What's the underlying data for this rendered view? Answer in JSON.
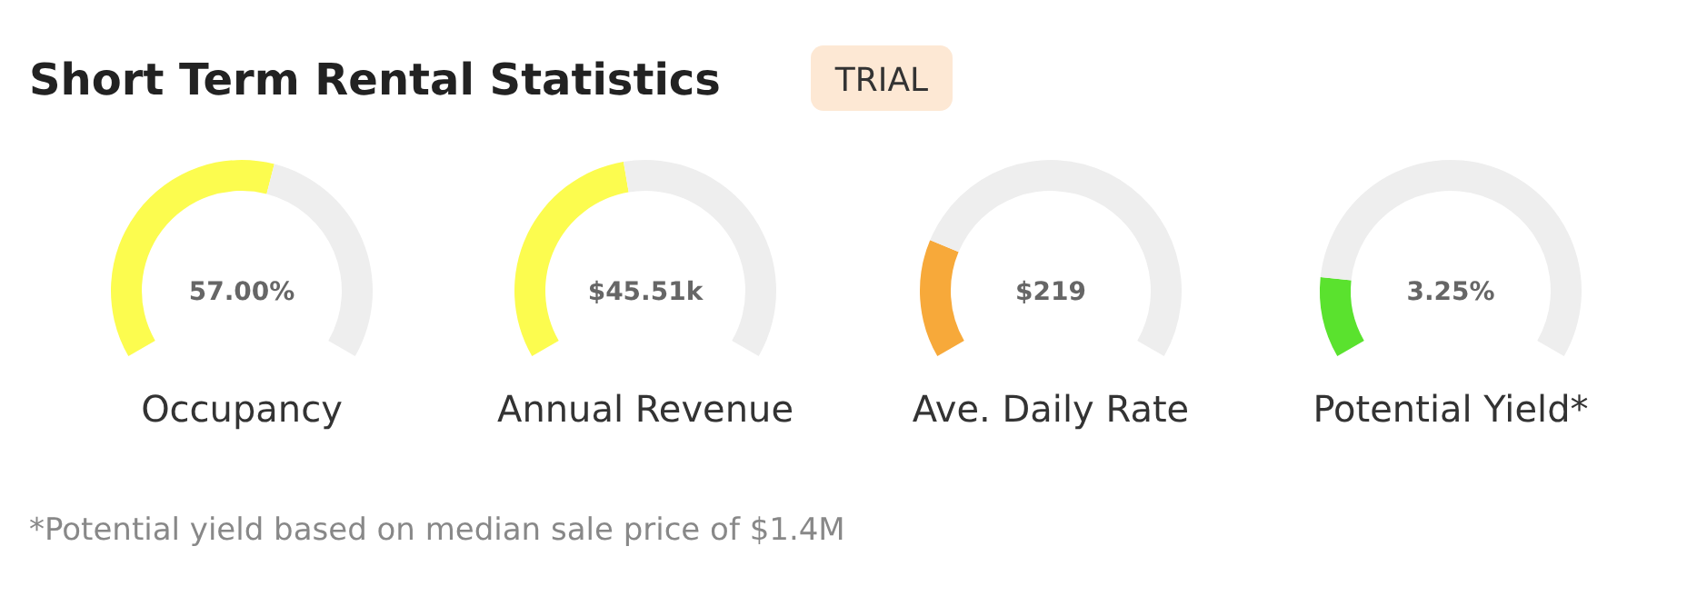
{
  "chart_data": [
    {
      "type": "other",
      "title": "Short Term Rental Statistics",
      "annotations": [
        "TRIAL",
        "*Potential yield based on median sale price of $1.4M"
      ]
    },
    {
      "type": "donut",
      "title": "Occupancy",
      "categories": [
        null,
        null
      ],
      "values": [
        56,
        44
      ],
      "colors": [
        "#fcfc4f",
        "#eeeeee"
      ],
      "annotations": [
        "57.00%"
      ]
    },
    {
      "type": "donut",
      "title": "Annual Revenue",
      "categories": [
        null,
        null
      ],
      "values": [
        46,
        54
      ],
      "colors": [
        "#fcfc4f",
        "#eeeeee"
      ],
      "annotations": [
        "$45.51k"
      ]
    },
    {
      "type": "donut",
      "title": "Ave. Daily Rate",
      "categories": [
        null,
        null
      ],
      "values": [
        22,
        78
      ],
      "colors": [
        "#f7a93a",
        "#eeeeee"
      ],
      "annotations": [
        "$219"
      ]
    },
    {
      "type": "donut",
      "title": "Potential Yield*",
      "categories": [
        null,
        null
      ],
      "values": [
        15,
        85
      ],
      "colors": [
        "#5ae22e",
        "#eeeeee"
      ],
      "annotations": [
        "3.25%"
      ]
    }
  ]
}
